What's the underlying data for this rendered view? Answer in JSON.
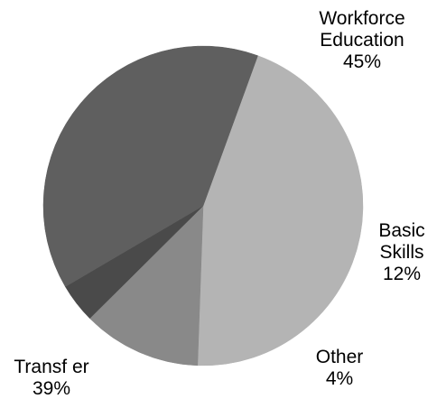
{
  "chart_data": {
    "type": "pie",
    "title": "",
    "start_angle_deg": -70,
    "direction": "clockwise",
    "slices": [
      {
        "label_lines": [
          "Workforce",
          "Education"
        ],
        "value_label": "45%",
        "value": 45,
        "color": "#b4b4b4"
      },
      {
        "label_lines": [
          "Basic",
          "Skills"
        ],
        "value_label": "12%",
        "value": 12,
        "color": "#898989"
      },
      {
        "label_lines": [
          "Other"
        ],
        "value_label": "4%",
        "value": 4,
        "color": "#4a4a4a"
      },
      {
        "label_lines": [
          "Transf er"
        ],
        "value_label": "39%",
        "value": 39,
        "color": "#5f5f5f"
      }
    ],
    "legend": "none",
    "grid": false
  }
}
